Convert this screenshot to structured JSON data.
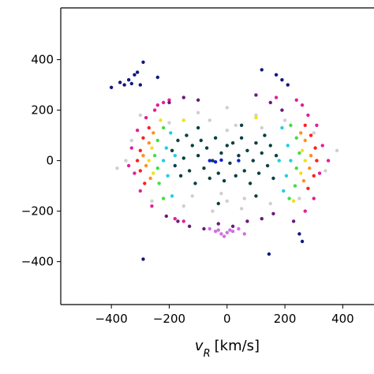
{
  "chart_data": {
    "type": "scatter",
    "xlabel": {
      "symbol": "v",
      "subscript": "R",
      "unit": "[km/s]"
    },
    "xlim": [
      -575,
      508
    ],
    "ylim": [
      -570,
      605
    ],
    "xticks": [
      {
        "value": -400,
        "label": "−400"
      },
      {
        "value": -200,
        "label": "−200"
      },
      0,
      200,
      400
    ],
    "yticks": [
      {
        "value": -400,
        "label": "−400"
      },
      {
        "value": -200,
        "label": "−200"
      },
      0,
      200,
      400
    ],
    "series": [
      {
        "color": "#cfcfcf",
        "x": [
          -350,
          -330,
          -300,
          -260,
          -200,
          -150,
          -100,
          -50,
          0,
          50,
          100,
          150,
          200,
          250,
          300,
          340,
          -380,
          380,
          0,
          -60,
          60,
          -20,
          30,
          0,
          -120,
          120
        ],
        "y": [
          0,
          80,
          180,
          -160,
          150,
          -180,
          190,
          -200,
          210,
          -190,
          180,
          -170,
          160,
          -150,
          110,
          -40,
          -30,
          40,
          120,
          160,
          -150,
          -130,
          140,
          -160,
          -140,
          130
        ]
      },
      {
        "color": "#0a4040",
        "x": [
          -190,
          -180,
          -170,
          -160,
          -150,
          -140,
          -130,
          -120,
          -110,
          -100,
          -90,
          -80,
          -70,
          -60,
          -50,
          -40,
          -30,
          -20,
          -10,
          0,
          10,
          20,
          30,
          40,
          50,
          60,
          70,
          80,
          90,
          100,
          110,
          120,
          130,
          140,
          150,
          160,
          170,
          -30,
          100,
          -100,
          50
        ],
        "y": [
          40,
          -20,
          80,
          -60,
          10,
          100,
          -40,
          60,
          -90,
          20,
          80,
          -30,
          50,
          -70,
          0,
          90,
          -50,
          30,
          -80,
          60,
          -10,
          70,
          -60,
          20,
          90,
          -40,
          40,
          -90,
          0,
          70,
          -50,
          30,
          100,
          -20,
          60,
          -70,
          20,
          -170,
          -140,
          130,
          140
        ]
      },
      {
        "color": "#20d0e0",
        "x": [
          -220,
          -210,
          -205,
          220,
          210,
          205,
          -195,
          195,
          -190,
          190,
          180,
          -180
        ],
        "y": [
          0,
          50,
          -60,
          0,
          60,
          -60,
          110,
          -120,
          -140,
          130,
          0,
          20
        ]
      },
      {
        "color": "#40e040",
        "x": [
          -250,
          -240,
          -240,
          -235,
          250,
          240,
          240,
          235,
          -220,
          220,
          -220,
          215
        ],
        "y": [
          20,
          -30,
          80,
          -90,
          30,
          -30,
          90,
          -100,
          130,
          140,
          -150,
          -150
        ]
      },
      {
        "color": "#f0e020",
        "x": [
          -270,
          -260,
          -255,
          270,
          260,
          255,
          -230,
          230,
          100,
          -150
        ],
        "y": [
          0,
          50,
          -50,
          0,
          40,
          -50,
          160,
          -160,
          170,
          160
        ]
      },
      {
        "color": "#ff9020",
        "x": [
          -290,
          -280,
          -270,
          -265,
          290,
          285,
          270,
          265,
          -255,
          255
        ],
        "y": [
          20,
          -20,
          70,
          -70,
          20,
          -30,
          80,
          -80,
          110,
          110
        ]
      },
      {
        "color": "#ff2020",
        "x": [
          -310,
          -300,
          -300,
          -290,
          -285,
          310,
          305,
          300,
          290,
          280,
          -270,
          270
        ],
        "y": [
          0,
          40,
          -40,
          90,
          -90,
          0,
          50,
          -60,
          100,
          -110,
          130,
          140
        ]
      },
      {
        "color": "#e0209a",
        "x": [
          -330,
          -320,
          -310,
          -300,
          -280,
          -260,
          -240,
          -220,
          -200,
          -180,
          300,
          320,
          330,
          310,
          280,
          260,
          240,
          -340,
          350,
          -250,
          270,
          -150,
          170
        ],
        "y": [
          50,
          -50,
          120,
          -120,
          170,
          -180,
          220,
          230,
          240,
          -230,
          -150,
          -50,
          60,
          140,
          180,
          220,
          240,
          -20,
          0,
          200,
          -200,
          -240,
          250
        ]
      },
      {
        "color": "#6a1b7a",
        "x": [
          -210,
          -170,
          -130,
          -80,
          -30,
          20,
          70,
          120,
          160,
          -200,
          -150,
          -100,
          100,
          150,
          190,
          230
        ],
        "y": [
          -220,
          -240,
          -260,
          -270,
          -250,
          -260,
          -240,
          -230,
          -210,
          230,
          250,
          240,
          260,
          230,
          200,
          -240
        ]
      },
      {
        "color": "#d070e0",
        "x": [
          -40,
          -20,
          0,
          20,
          -60,
          40,
          -10,
          10,
          60,
          -30
        ],
        "y": [
          -280,
          -290,
          -285,
          -280,
          -270,
          -270,
          -300,
          -275,
          -290,
          -275
        ]
      },
      {
        "color": "#1020d0",
        "x": [
          -60,
          -40,
          -20,
          40
        ],
        "y": [
          0,
          -5,
          2,
          0
        ]
      },
      {
        "color": "#101880",
        "x": [
          -400,
          -370,
          -355,
          -340,
          -330,
          -320,
          -310,
          -290,
          -240,
          -300,
          120,
          170,
          190,
          210,
          250,
          260,
          145,
          -290
        ],
        "y": [
          290,
          310,
          300,
          320,
          305,
          340,
          350,
          390,
          330,
          300,
          360,
          340,
          320,
          300,
          -290,
          -320,
          -370,
          -390
        ]
      }
    ]
  }
}
